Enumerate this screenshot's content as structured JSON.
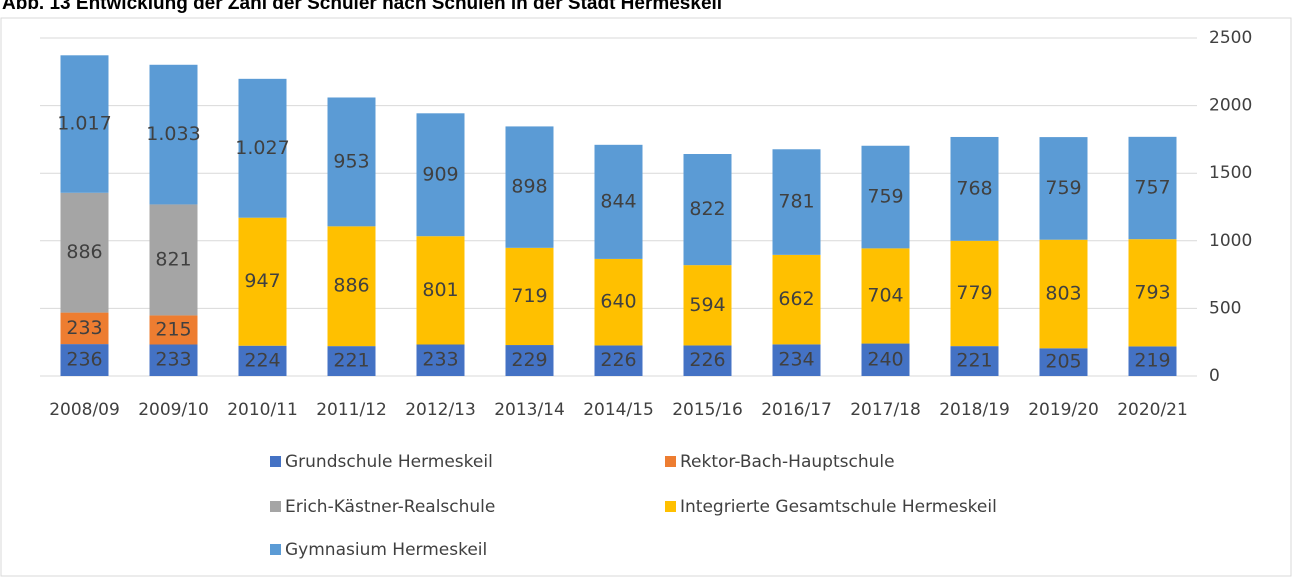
{
  "chart_data": {
    "type": "stacked_bar",
    "title": "Abb. 13 Entwicklung der Zahl der Schüler nach Schulen in der Stadt Hermeskeil",
    "categories": [
      "2008/09",
      "2009/10",
      "2010/11",
      "2011/12",
      "2012/13",
      "2013/14",
      "2014/15",
      "2015/16",
      "2016/17",
      "2017/18",
      "2018/19",
      "2019/20",
      "2020/21"
    ],
    "series": [
      {
        "name": "Grundschule Hermeskeil",
        "color": "#4472c4",
        "values": [
          236,
          233,
          224,
          221,
          233,
          229,
          226,
          226,
          234,
          240,
          221,
          205,
          219
        ]
      },
      {
        "name": "Rektor-Bach-Hauptschule",
        "color": "#ed7d31",
        "values": [
          233,
          215,
          null,
          null,
          null,
          null,
          null,
          null,
          null,
          null,
          null,
          null,
          null
        ]
      },
      {
        "name": "Erich-Kästner-Realschule",
        "color": "#a5a5a5",
        "values": [
          886,
          821,
          null,
          null,
          null,
          null,
          null,
          null,
          null,
          null,
          null,
          null,
          null
        ]
      },
      {
        "name": "Integrierte Gesamtschule Hermeskeil",
        "color": "#ffc000",
        "values": [
          null,
          null,
          947,
          886,
          801,
          719,
          640,
          594,
          662,
          704,
          779,
          803,
          793
        ]
      },
      {
        "name": "Gymnasium Hermeskeil",
        "color": "#5b9bd5",
        "values": [
          1017,
          1033,
          1027,
          953,
          909,
          898,
          844,
          822,
          781,
          759,
          768,
          759,
          757
        ],
        "value_labels": [
          "1.017",
          "1.033",
          "1.027",
          "953",
          "909",
          "898",
          "844",
          "822",
          "781",
          "759",
          "768",
          "759",
          "757"
        ]
      }
    ],
    "ylim": [
      0,
      2500
    ],
    "yticks": [
      0,
      500,
      1000,
      1500,
      2000,
      2500
    ],
    "y_axis_side": "right",
    "grid": true,
    "legend": "bottom"
  }
}
